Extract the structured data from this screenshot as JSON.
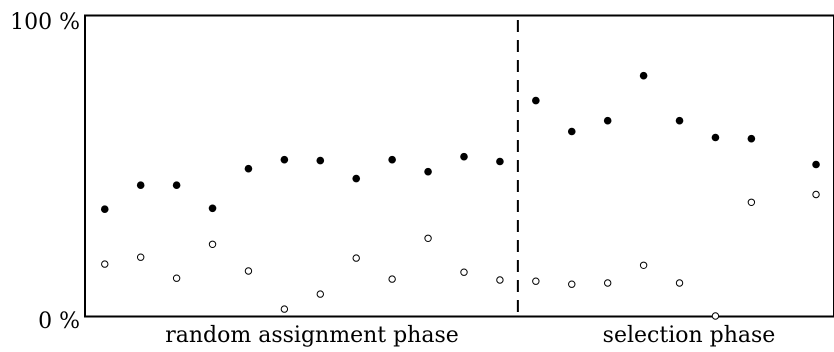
{
  "chart_data": {
    "type": "scatter",
    "title": "",
    "xlabel": "",
    "ylabel": "",
    "ylim": [
      0,
      100
    ],
    "y_ticks": [
      {
        "value": 0,
        "label": "0 %"
      },
      {
        "value": 100,
        "label": "100 %"
      }
    ],
    "grid": false,
    "legend": "none",
    "x": [
      1,
      2,
      3,
      4,
      5,
      6,
      7,
      8,
      9,
      10,
      11,
      12,
      13,
      14,
      15,
      16,
      17,
      18,
      19,
      20,
      21
    ],
    "xlim": [
      0.45,
      21.3
    ],
    "divider_at": 12.5,
    "phases": [
      {
        "label": "random assignment phase",
        "x_start": 0.5,
        "x_end": 12.5
      },
      {
        "label": "selection phase",
        "x_start": 12.5,
        "x_end": 21.3
      }
    ],
    "series": [
      {
        "marker": "filled-circle",
        "color": "#000000",
        "values": [
          35.6,
          43.6,
          43.6,
          35.9,
          49.1,
          52.1,
          51.8,
          45.8,
          52.1,
          48.1,
          53.1,
          51.5,
          71.8,
          61.5,
          65.1,
          80.1,
          65.1,
          59.5,
          59.1,
          50.5
        ]
      },
      {
        "marker": "open-circle",
        "color": "#000000",
        "values": [
          17.3,
          19.6,
          12.6,
          23.9,
          15.0,
          2.3,
          7.3,
          19.3,
          12.3,
          25.9,
          14.6,
          12.0,
          11.6,
          10.6,
          11.0,
          16.9,
          11.0,
          0.0,
          37.9,
          40.5
        ]
      }
    ],
    "series_x": [
      [
        1,
        2,
        3,
        4,
        5,
        6,
        7,
        8,
        9,
        10,
        11,
        12,
        13,
        14,
        15,
        16,
        17,
        18,
        19,
        20.8
      ],
      [
        1,
        2,
        3,
        4,
        5,
        6,
        7,
        8,
        9,
        10,
        11,
        12,
        13,
        14,
        15,
        16,
        17,
        18,
        19,
        20.8
      ]
    ]
  },
  "colors": {
    "axis": "#000000",
    "marker": "#000000"
  }
}
